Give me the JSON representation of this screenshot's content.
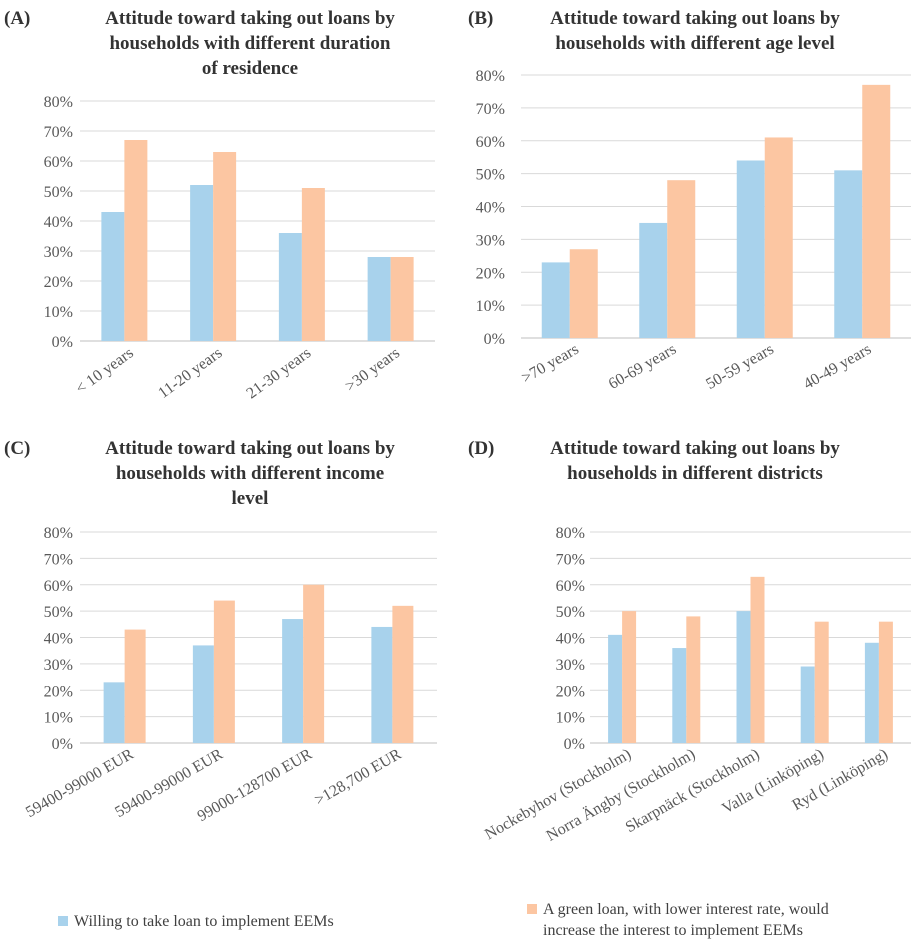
{
  "colors": {
    "series_a": "#a8d2ec",
    "series_b": "#fcc6a2",
    "grid": "#d9d9d9",
    "axis": "#bfbfbf"
  },
  "legend": {
    "series_a": "Willing to take loan to implement EEMs",
    "series_b_line1": "A green loan, with lower interest rate, would",
    "series_b_line2": "increase the interest to implement EEMs"
  },
  "chart_data": [
    {
      "type": "bar",
      "panel": "(A)",
      "title": [
        "Attitude toward taking out loans by",
        "households with different duration",
        "of residence"
      ],
      "categories": [
        "< 10 years",
        "11-20 years",
        "21-30 years",
        ">30 years"
      ],
      "series": [
        {
          "name": "Willing to take loan to implement EEMs",
          "values": [
            43,
            52,
            36,
            28
          ]
        },
        {
          "name": "A green loan, with lower interest rate, would increase the interest to implement EEMs",
          "values": [
            67,
            63,
            51,
            28
          ]
        }
      ],
      "ylim": [
        0,
        80
      ],
      "yticks": [
        "0%",
        "10%",
        "20%",
        "30%",
        "40%",
        "50%",
        "60%",
        "70%",
        "80%"
      ]
    },
    {
      "type": "bar",
      "panel": "(B)",
      "title": [
        "Attitude toward taking out loans by",
        "households with different age level"
      ],
      "categories": [
        ">70 years",
        "60-69 years",
        "50-59 years",
        "40-49 years"
      ],
      "series": [
        {
          "name": "Willing to take loan to implement EEMs",
          "values": [
            23,
            35,
            54,
            51
          ]
        },
        {
          "name": "A green loan, with lower interest rate, would increase the interest to implement EEMs",
          "values": [
            27,
            48,
            61,
            77
          ]
        }
      ],
      "ylim": [
        0,
        80
      ],
      "yticks": [
        "0%",
        "10%",
        "20%",
        "30%",
        "40%",
        "50%",
        "60%",
        "70%",
        "80%"
      ]
    },
    {
      "type": "bar",
      "panel": "(C)",
      "title": [
        "Attitude toward taking out loans by",
        "households with different income",
        "level"
      ],
      "categories": [
        "59400-99000 EUR",
        "59400-99000 EUR",
        "99000-128700 EUR",
        ">128,700 EUR"
      ],
      "series": [
        {
          "name": "Willing to take loan to implement EEMs",
          "values": [
            23,
            37,
            47,
            44
          ]
        },
        {
          "name": "A green loan, with lower interest rate, would increase the interest to implement EEMs",
          "values": [
            43,
            54,
            60,
            52
          ]
        }
      ],
      "ylim": [
        0,
        80
      ],
      "yticks": [
        "0%",
        "10%",
        "20%",
        "30%",
        "40%",
        "50%",
        "60%",
        "70%",
        "80%"
      ]
    },
    {
      "type": "bar",
      "panel": "(D)",
      "title": [
        "Attitude toward taking out loans by",
        "households in different districts"
      ],
      "categories": [
        "Nockebyhov (Stockholm)",
        "Norra Ängby (Stockholm)",
        "Skarpnäck (Stockholm)",
        "Valla (Linköping)",
        "Ryd (Linköping)"
      ],
      "series": [
        {
          "name": "Willing to take loan to implement EEMs",
          "values": [
            41,
            36,
            50,
            29,
            38
          ]
        },
        {
          "name": "A green loan, with lower interest rate, would increase the interest to implement EEMs",
          "values": [
            50,
            48,
            63,
            46,
            46
          ]
        }
      ],
      "ylim": [
        0,
        80
      ],
      "yticks": [
        "0%",
        "10%",
        "20%",
        "30%",
        "40%",
        "50%",
        "60%",
        "70%",
        "80%"
      ]
    }
  ]
}
